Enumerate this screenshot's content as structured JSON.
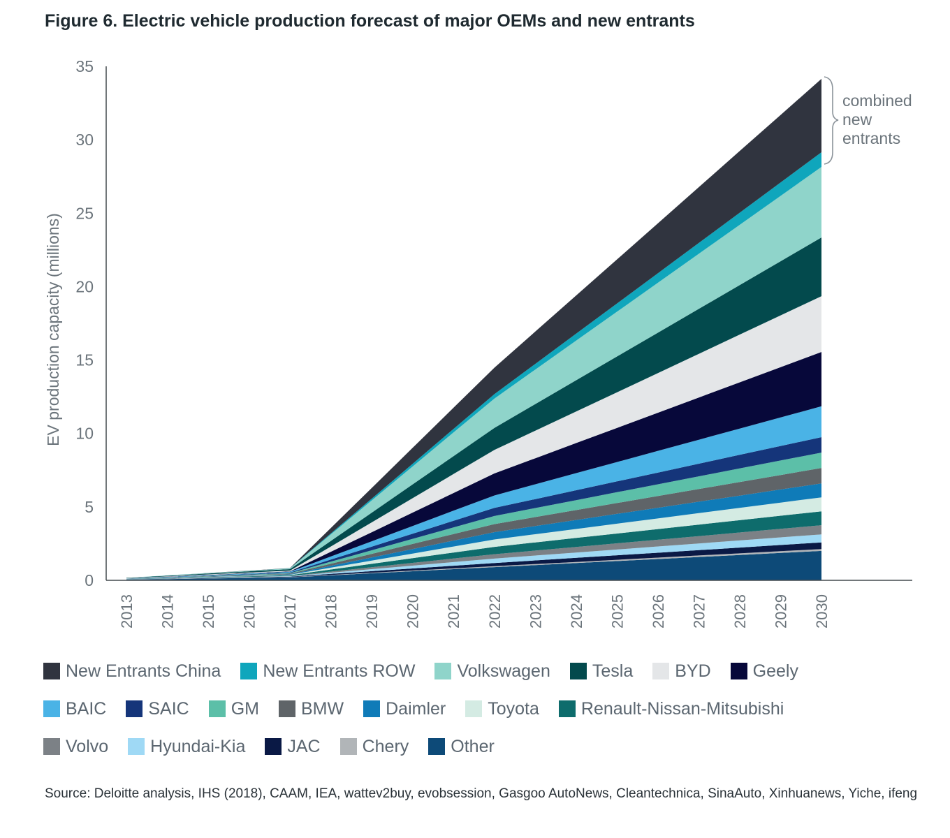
{
  "title": "Figure 6. Electric vehicle production forecast of major OEMs and new entrants",
  "source": "Source: Deloitte analysis, IHS (2018), CAAM, IEA, wattev2buy, evobsession, Gasgoo AutoNews, Cleantechnica, SinaAuto, Xinhuanews, Yiche, ifeng",
  "annotation": [
    "combined",
    "new",
    "entrants"
  ],
  "chart_data": {
    "type": "area",
    "stacked": true,
    "title": "Figure 6. Electric vehicle production forecast of major OEMs and new entrants",
    "xlabel": "",
    "ylabel": "EV production capacity (millions)",
    "ylim": [
      0,
      35
    ],
    "yticks": [
      0,
      5,
      10,
      15,
      20,
      25,
      30,
      35
    ],
    "x": [
      2013,
      2014,
      2015,
      2016,
      2017,
      2018,
      2019,
      2020,
      2021,
      2022,
      2023,
      2024,
      2025,
      2026,
      2027,
      2028,
      2029,
      2030
    ],
    "key_years": [
      2013,
      2017,
      2022,
      2030
    ],
    "series": [
      {
        "name": "Other",
        "color": "#0d4a78",
        "key_values": [
          0.05,
          0.2,
          0.9,
          2.0
        ]
      },
      {
        "name": "Chery",
        "color": "#b1b5b8",
        "key_values": [
          0.005,
          0.02,
          0.06,
          0.13
        ]
      },
      {
        "name": "JAC",
        "color": "#0a1945",
        "key_values": [
          0.005,
          0.03,
          0.22,
          0.45
        ]
      },
      {
        "name": "Hyundai-Kia",
        "color": "#9fd9f5",
        "key_values": [
          0.005,
          0.03,
          0.3,
          0.55
        ]
      },
      {
        "name": "Volvo",
        "color": "#7c8186",
        "key_values": [
          0.005,
          0.02,
          0.3,
          0.62
        ]
      },
      {
        "name": "Renault-Nissan-Mitsubishi",
        "color": "#0e6c6c",
        "key_values": [
          0.01,
          0.05,
          0.5,
          0.95
        ]
      },
      {
        "name": "Toyota",
        "color": "#d4ebe3",
        "key_values": [
          0.005,
          0.03,
          0.5,
          0.95
        ]
      },
      {
        "name": "Daimler",
        "color": "#0f7bb8",
        "key_values": [
          0.005,
          0.03,
          0.5,
          0.95
        ]
      },
      {
        "name": "BMW",
        "color": "#5f6468",
        "key_values": [
          0.01,
          0.04,
          0.55,
          1.05
        ]
      },
      {
        "name": "GM",
        "color": "#5cbfa8",
        "key_values": [
          0.005,
          0.04,
          0.55,
          1.05
        ]
      },
      {
        "name": "SAIC",
        "color": "#15357a",
        "key_values": [
          0.005,
          0.04,
          0.55,
          1.05
        ]
      },
      {
        "name": "BAIC",
        "color": "#4ab3e6",
        "key_values": [
          0.01,
          0.05,
          0.85,
          2.1
        ]
      },
      {
        "name": "Geely",
        "color": "#07083a",
        "key_values": [
          0.005,
          0.03,
          1.5,
          3.7
        ]
      },
      {
        "name": "BYD",
        "color": "#e4e6e8",
        "key_values": [
          0.02,
          0.05,
          1.6,
          3.8
        ]
      },
      {
        "name": "Tesla",
        "color": "#034a4d",
        "key_values": [
          0.02,
          0.1,
          1.5,
          4.0
        ]
      },
      {
        "name": "Volkswagen",
        "color": "#8fd4ca",
        "key_values": [
          0.005,
          0.05,
          2.0,
          4.8
        ]
      },
      {
        "name": "New Entrants ROW",
        "color": "#0fa6bc",
        "key_values": [
          0.0,
          0.01,
          0.3,
          1.0
        ]
      },
      {
        "name": "New Entrants China",
        "color": "#30343f",
        "key_values": [
          0.0,
          0.01,
          1.8,
          5.0
        ]
      }
    ],
    "legend": [
      [
        "New Entrants China",
        "New Entrants ROW",
        "Volkswagen",
        "Tesla",
        "BYD",
        "Geely"
      ],
      [
        "BAIC",
        "SAIC",
        "GM",
        "BMW",
        "Daimler",
        "Toyota",
        "Renault-Nissan-Mitsubishi"
      ],
      [
        "Volvo",
        "Hyundai-Kia",
        "JAC",
        "Chery",
        "Other"
      ]
    ]
  }
}
